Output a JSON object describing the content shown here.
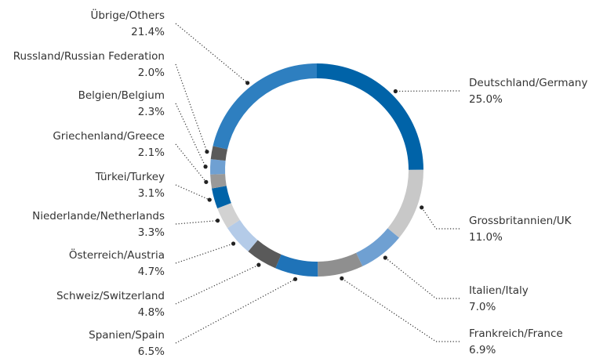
{
  "chart_data": {
    "type": "donut",
    "categories": [
      "Deutschland/Germany",
      "Grossbritannien/UK",
      "Italien/Italy",
      "Frankreich/France",
      "Spanien/Spain",
      "Schweiz/Switzerland",
      "Österreich/Austria",
      "Niederlande/Netherlands",
      "Türkei/Turkey",
      "Griechenland/Greece",
      "Belgien/Belgium",
      "Russland/Russian Federation",
      "Übrige/Others"
    ],
    "values": [
      25.0,
      11.0,
      7.0,
      6.9,
      6.5,
      4.8,
      4.7,
      3.3,
      3.1,
      2.1,
      2.3,
      2.0,
      21.4
    ],
    "value_labels": [
      "25.0%",
      "11.0%",
      "7.0%",
      "6.9%",
      "6.5%",
      "4.8%",
      "4.7%",
      "3.3%",
      "3.1%",
      "2.1%",
      "2.3%",
      "2.0%",
      "21.4%"
    ],
    "colors": [
      "#0063a8",
      "#c8c8c8",
      "#6fa0d2",
      "#8f8f8f",
      "#1f73b8",
      "#5a5a5a",
      "#b4cbe8",
      "#d2d2d2",
      "#0063a8",
      "#999999",
      "#6fa0d2",
      "#5a5a5a",
      "#2e7fc0"
    ]
  }
}
